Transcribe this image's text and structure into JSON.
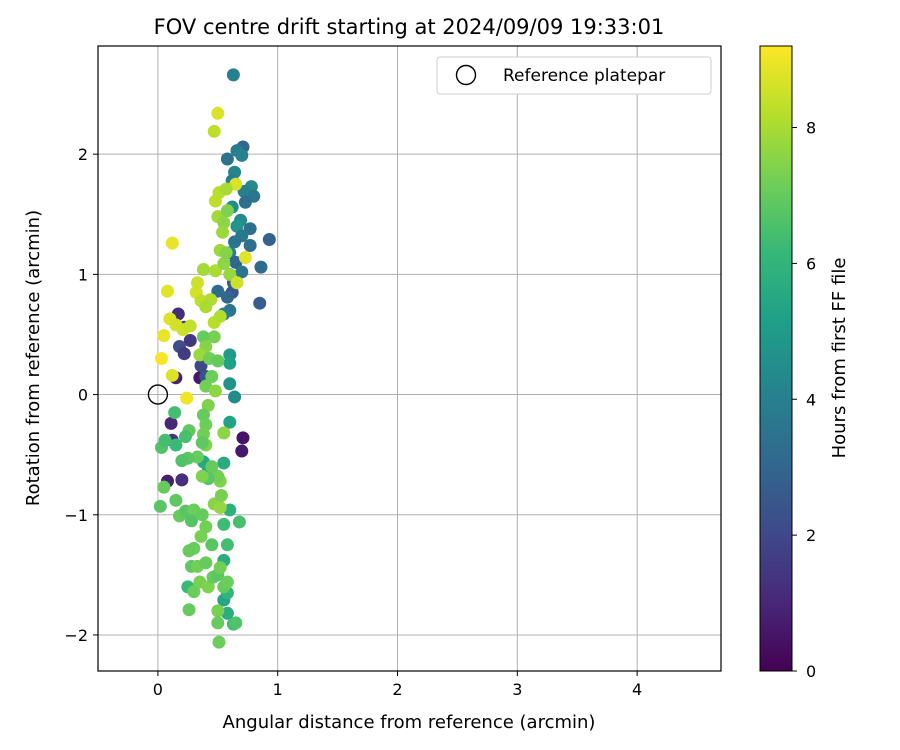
{
  "chart_data": {
    "type": "scatter",
    "title": "FOV centre drift starting at 2024/09/09 19:33:01",
    "xlabel": "Angular distance from reference (arcmin)",
    "ylabel": "Rotation from reference (arcmin)",
    "xlim": [
      -0.5,
      4.7
    ],
    "ylim": [
      -2.3,
      2.9
    ],
    "xticks": [
      0,
      1,
      2,
      3,
      4
    ],
    "xtick_labels": [
      "0",
      "1",
      "2",
      "3",
      "4"
    ],
    "yticks": [
      -2,
      -1,
      0,
      1,
      2
    ],
    "ytick_labels": [
      "−2",
      "−1",
      "0",
      "1",
      "2"
    ],
    "grid": true,
    "legend": {
      "placement": "top-right",
      "entries": [
        "Reference platepar"
      ]
    },
    "reference_point": {
      "x": 0,
      "y": 0
    },
    "colorbar": {
      "label": "Hours from first FF file",
      "range": [
        0,
        9.2
      ],
      "ticks": [
        0,
        2,
        4,
        6,
        8
      ],
      "tick_labels": [
        "0",
        "2",
        "4",
        "6",
        "8"
      ],
      "colormap": "viridis"
    },
    "series": [
      {
        "points": [
          [
            0.63,
            2.66,
            4.0
          ],
          [
            0.71,
            2.06,
            3.0
          ],
          [
            0.66,
            2.03,
            3.8
          ],
          [
            0.7,
            1.99,
            4.1
          ],
          [
            0.58,
            1.96,
            3.5
          ],
          [
            0.64,
            1.85,
            4.2
          ],
          [
            0.62,
            1.78,
            3.9
          ],
          [
            0.78,
            1.73,
            4.3
          ],
          [
            0.72,
            1.69,
            4.0
          ],
          [
            0.8,
            1.65,
            3.6
          ],
          [
            0.73,
            1.6,
            3.4
          ],
          [
            0.62,
            1.56,
            4.5
          ],
          [
            0.69,
            1.45,
            4.4
          ],
          [
            0.66,
            1.4,
            4.8
          ],
          [
            0.77,
            1.38,
            3.3
          ],
          [
            0.7,
            1.32,
            3.7
          ],
          [
            0.93,
            1.29,
            2.9
          ],
          [
            0.64,
            1.27,
            3.5
          ],
          [
            0.77,
            1.24,
            3.3
          ],
          [
            0.6,
            1.18,
            3.9
          ],
          [
            0.65,
            1.1,
            3.0
          ],
          [
            0.86,
            1.06,
            3.2
          ],
          [
            0.7,
            1.02,
            3.6
          ],
          [
            0.63,
            0.93,
            2.8
          ],
          [
            0.5,
            0.86,
            3.2
          ],
          [
            0.62,
            0.85,
            2.5
          ],
          [
            0.58,
            0.81,
            3.0
          ],
          [
            0.85,
            0.76,
            2.7
          ],
          [
            0.6,
            0.7,
            3.6
          ],
          [
            0.55,
            0.67,
            3.8
          ],
          [
            0.17,
            0.67,
            1.2
          ],
          [
            0.22,
            0.56,
            1.8
          ],
          [
            0.27,
            0.45,
            1.5
          ],
          [
            0.18,
            0.4,
            2.2
          ],
          [
            0.22,
            0.34,
            1.6
          ],
          [
            0.35,
            0.14,
            0.6
          ],
          [
            0.15,
            0.14,
            0.9
          ],
          [
            0.11,
            -0.24,
            1.0
          ],
          [
            0.12,
            -0.38,
            1.4
          ],
          [
            0.71,
            -0.36,
            0.5
          ],
          [
            0.7,
            -0.47,
            0.6
          ],
          [
            0.08,
            -0.72,
            0.8
          ],
          [
            0.2,
            -0.71,
            1.3
          ],
          [
            0.36,
            0.24,
            2.0
          ],
          [
            0.4,
            0.15,
            2.4
          ],
          [
            0.6,
            0.33,
            5.0
          ],
          [
            0.6,
            0.26,
            5.2
          ],
          [
            0.64,
            -0.02,
            4.4
          ],
          [
            0.6,
            0.09,
            4.7
          ],
          [
            0.6,
            -0.23,
            5.3
          ],
          [
            0.55,
            -0.57,
            5.6
          ],
          [
            0.42,
            -0.63,
            5.2
          ],
          [
            0.38,
            -0.56,
            5.5
          ],
          [
            0.6,
            -0.96,
            5.8
          ],
          [
            0.55,
            -1.38,
            5.6
          ],
          [
            0.55,
            -1.71,
            5.4
          ],
          [
            0.58,
            -1.82,
            5.7
          ],
          [
            0.58,
            -1.65,
            6.0
          ],
          [
            0.25,
            -1.6,
            6.2
          ],
          [
            0.63,
            -1.91,
            6.3
          ],
          [
            0.08,
            0.86,
            8.8
          ],
          [
            0.12,
            1.26,
            8.9
          ],
          [
            0.03,
            0.3,
            9.1
          ],
          [
            0.05,
            0.49,
            8.9
          ],
          [
            0.1,
            0.63,
            8.7
          ],
          [
            0.15,
            0.58,
            8.6
          ],
          [
            0.21,
            0.54,
            8.5
          ],
          [
            0.27,
            0.57,
            8.4
          ],
          [
            0.32,
            0.85,
            8.6
          ],
          [
            0.33,
            0.93,
            8.5
          ],
          [
            0.36,
            0.78,
            8.3
          ],
          [
            0.44,
            0.79,
            8.1
          ],
          [
            0.4,
            0.73,
            8.0
          ],
          [
            0.47,
            0.6,
            8.2
          ],
          [
            0.52,
            0.65,
            8.1
          ],
          [
            0.48,
            1.03,
            8.0
          ],
          [
            0.55,
            1.09,
            7.6
          ],
          [
            0.52,
            1.2,
            7.8
          ],
          [
            0.57,
            1.18,
            7.5
          ],
          [
            0.6,
            1.0,
            7.7
          ],
          [
            0.66,
            0.93,
            8.5
          ],
          [
            0.65,
            1.75,
            8.7
          ],
          [
            0.73,
            1.14,
            8.8
          ],
          [
            0.48,
            1.61,
            8.3
          ],
          [
            0.51,
            1.68,
            8.2
          ],
          [
            0.57,
            1.71,
            8.0
          ],
          [
            0.5,
            1.48,
            7.9
          ],
          [
            0.55,
            1.43,
            7.6
          ],
          [
            0.58,
            1.53,
            7.4
          ],
          [
            0.54,
            1.35,
            7.8
          ],
          [
            0.5,
            2.34,
            8.7
          ],
          [
            0.47,
            2.19,
            8.3
          ],
          [
            0.38,
            1.04,
            7.9
          ],
          [
            0.12,
            0.16,
            8.7
          ],
          [
            0.24,
            -0.03,
            9.0
          ],
          [
            0.47,
            0.48,
            7.3
          ],
          [
            0.38,
            0.48,
            7.0
          ],
          [
            0.4,
            0.4,
            7.5
          ],
          [
            0.35,
            0.33,
            7.8
          ],
          [
            0.43,
            0.3,
            7.2
          ],
          [
            0.5,
            0.28,
            7.0
          ],
          [
            0.45,
            0.15,
            7.1
          ],
          [
            0.4,
            0.07,
            7.2
          ],
          [
            0.48,
            0.03,
            7.6
          ],
          [
            0.42,
            -0.09,
            7.4
          ],
          [
            0.38,
            -0.17,
            7.0
          ],
          [
            0.4,
            -0.25,
            7.1
          ],
          [
            0.38,
            -0.33,
            7.2
          ],
          [
            0.4,
            -0.42,
            7.4
          ],
          [
            0.33,
            -0.52,
            7.0
          ],
          [
            0.25,
            -0.53,
            6.8
          ],
          [
            0.2,
            -0.55,
            6.6
          ],
          [
            0.37,
            -0.4,
            6.9
          ],
          [
            0.26,
            -0.3,
            6.9
          ],
          [
            0.23,
            -0.35,
            6.5
          ],
          [
            0.15,
            -0.42,
            6.2
          ],
          [
            0.14,
            -0.15,
            6.4
          ],
          [
            0.03,
            -0.44,
            6.6
          ],
          [
            0.06,
            -0.38,
            6.4
          ],
          [
            0.05,
            -0.77,
            7.0
          ],
          [
            0.02,
            -0.93,
            6.8
          ],
          [
            0.15,
            -0.88,
            6.9
          ],
          [
            0.18,
            -1.01,
            7.0
          ],
          [
            0.23,
            -0.97,
            6.8
          ],
          [
            0.3,
            -0.96,
            7.1
          ],
          [
            0.28,
            -1.05,
            6.7
          ],
          [
            0.37,
            -1.0,
            7.0
          ],
          [
            0.4,
            -1.1,
            7.2
          ],
          [
            0.36,
            -1.18,
            7.3
          ],
          [
            0.3,
            -1.28,
            7.1
          ],
          [
            0.26,
            -1.3,
            7.0
          ],
          [
            0.28,
            -1.43,
            6.9
          ],
          [
            0.33,
            -1.43,
            7.2
          ],
          [
            0.35,
            -1.56,
            7.3
          ],
          [
            0.3,
            -1.64,
            7.1
          ],
          [
            0.42,
            -1.6,
            7.4
          ],
          [
            0.46,
            -1.52,
            7.0
          ],
          [
            0.5,
            -1.5,
            6.8
          ],
          [
            0.52,
            -1.44,
            7.2
          ],
          [
            0.55,
            -1.6,
            7.0
          ],
          [
            0.58,
            -1.56,
            7.1
          ],
          [
            0.5,
            -1.8,
            7.3
          ],
          [
            0.5,
            -1.9,
            7.0
          ],
          [
            0.51,
            -2.06,
            7.1
          ],
          [
            0.26,
            -1.79,
            7.0
          ],
          [
            0.47,
            -0.91,
            7.5
          ],
          [
            0.52,
            -0.94,
            7.7
          ],
          [
            0.52,
            -0.72,
            7.4
          ],
          [
            0.53,
            -0.84,
            7.3
          ],
          [
            0.5,
            -0.68,
            7.2
          ],
          [
            0.55,
            -0.32,
            7.6
          ],
          [
            0.45,
            -0.6,
            7.0
          ],
          [
            0.42,
            -0.7,
            6.8
          ],
          [
            0.37,
            -0.68,
            7.4
          ],
          [
            0.68,
            -1.06,
            6.5
          ],
          [
            0.65,
            -1.9,
            6.6
          ],
          [
            0.55,
            -1.08,
            6.3
          ],
          [
            0.58,
            -1.25,
            6.4
          ],
          [
            0.45,
            -1.25,
            6.8
          ],
          [
            0.4,
            -1.4,
            7.0
          ]
        ]
      }
    ]
  }
}
